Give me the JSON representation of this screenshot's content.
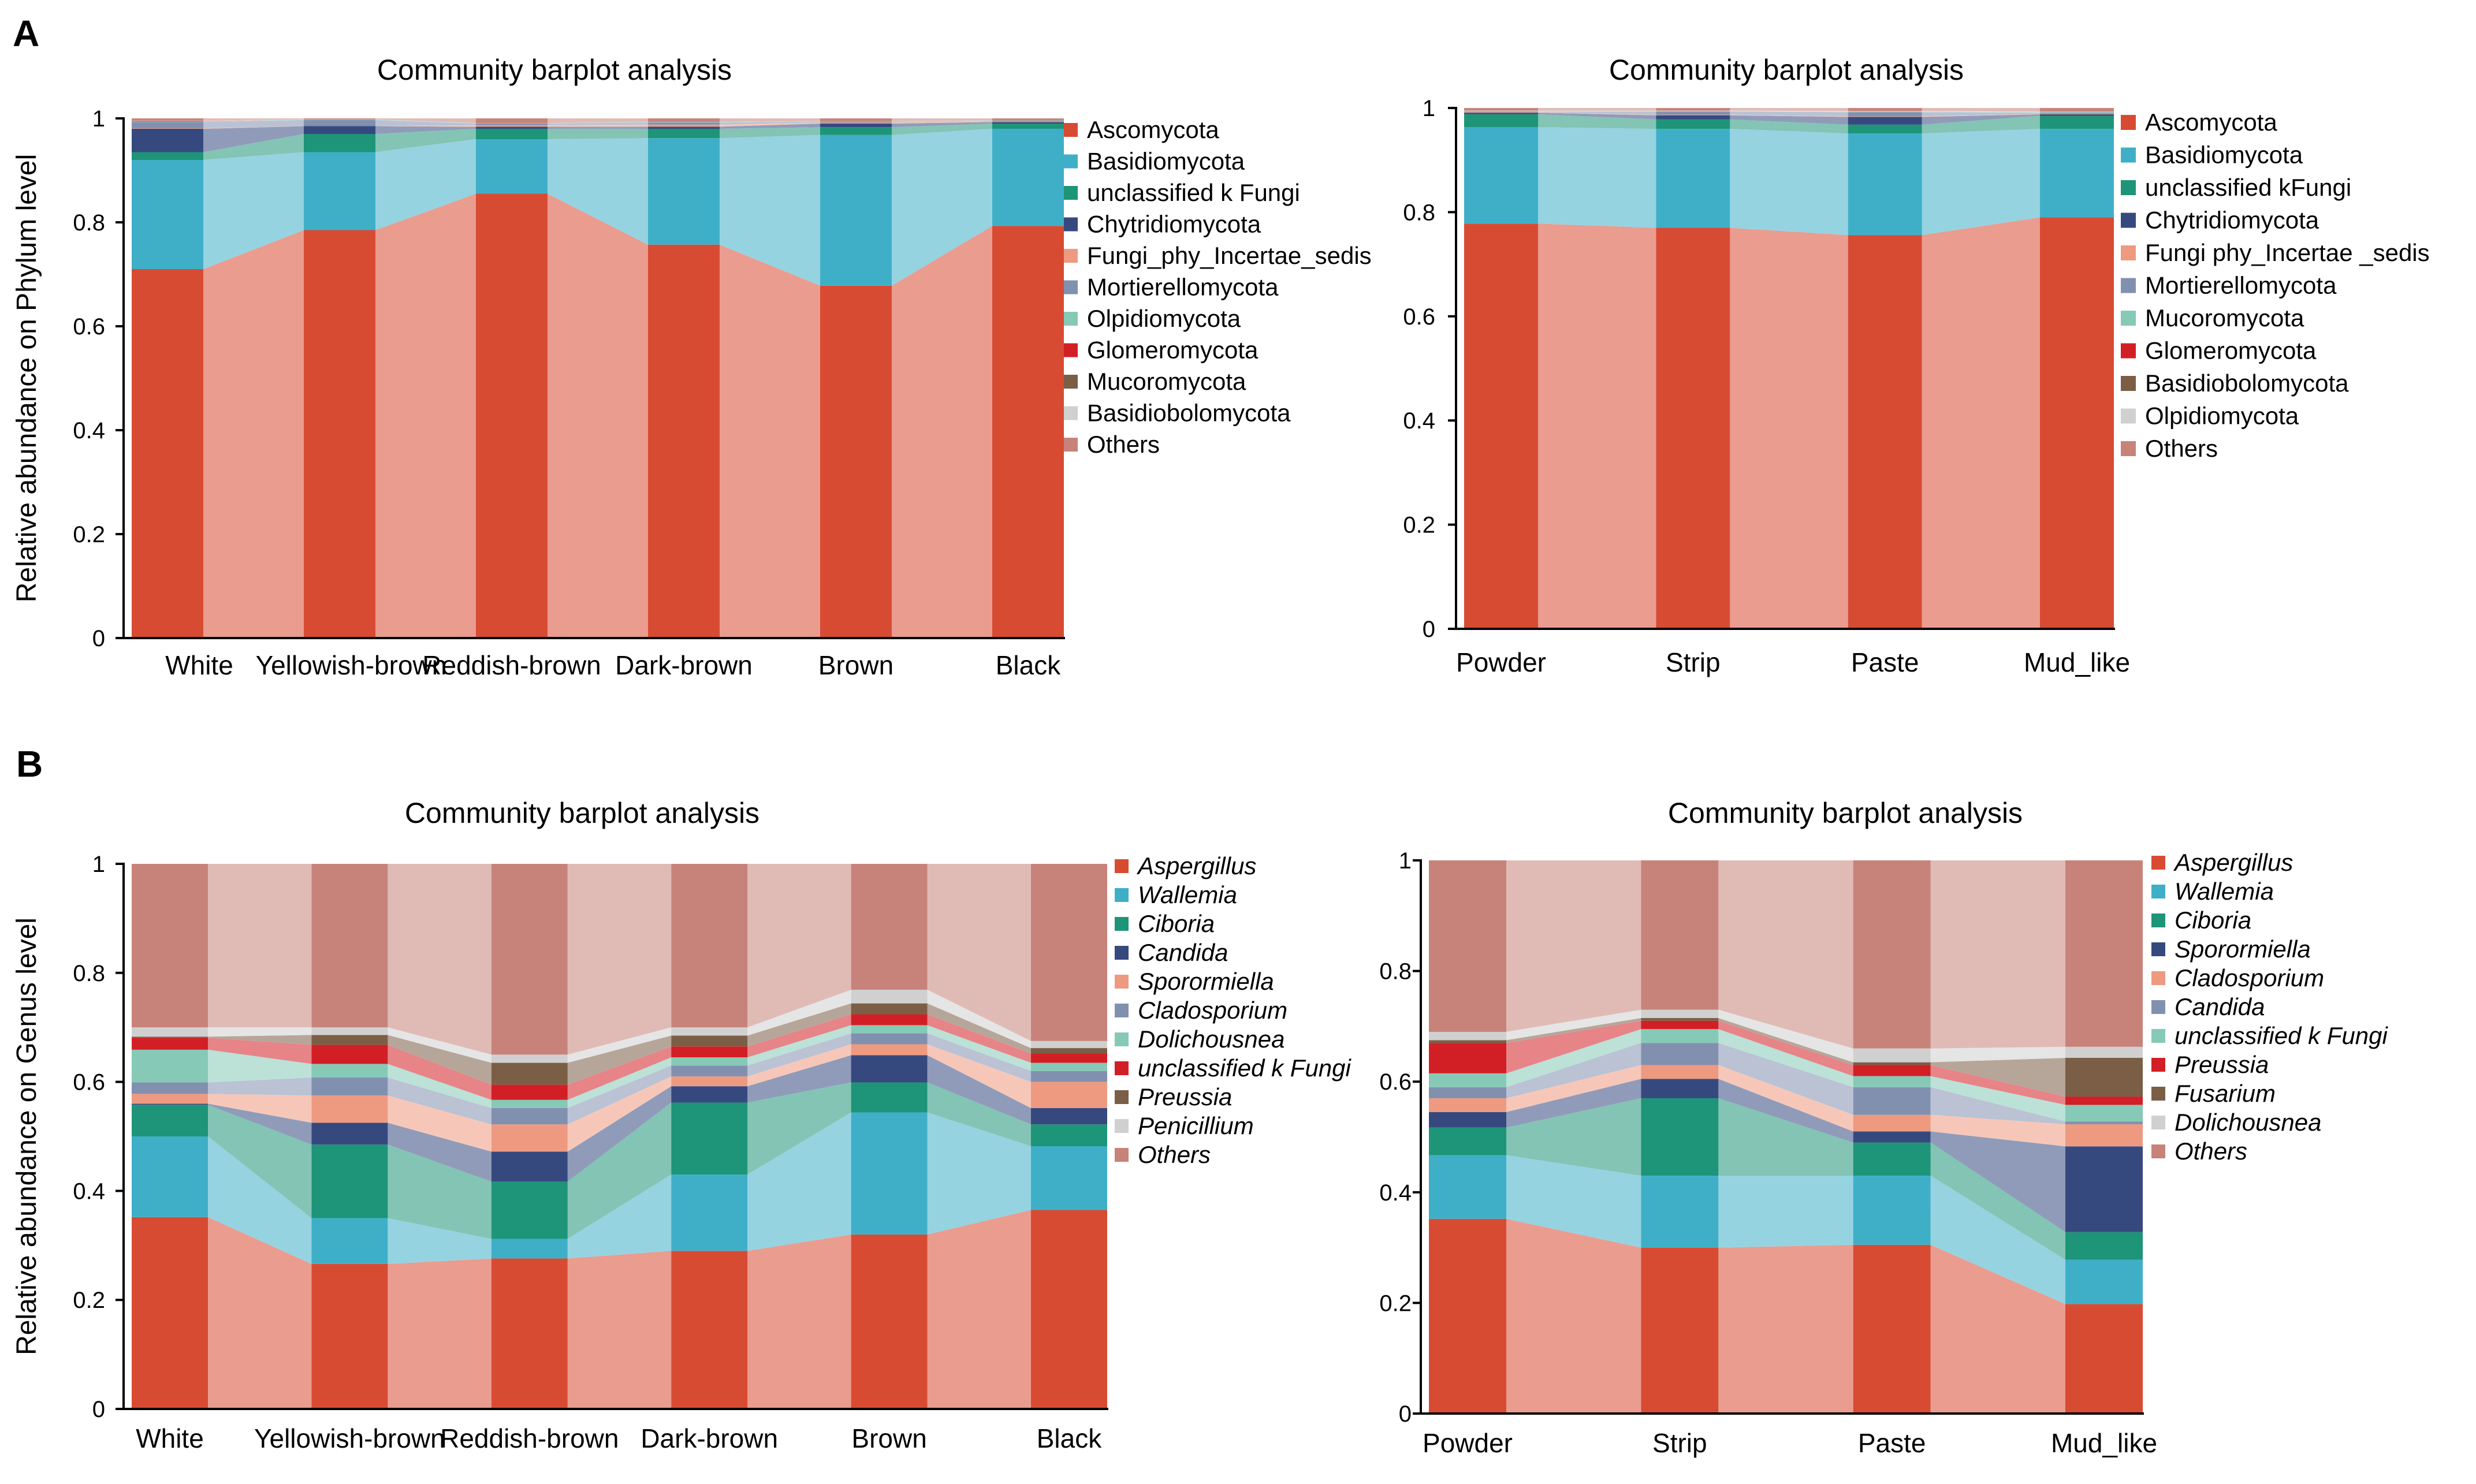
{
  "panels": {
    "a": "A",
    "b": "B"
  },
  "chart_data": [
    {
      "type": "bar",
      "stacked": true,
      "title": "Community barplot analysis",
      "xlabel": "",
      "ylabel": "Relative abundance on Phylum level",
      "ylim": [
        0,
        1
      ],
      "yticks": [
        "0",
        "0.2",
        "0.4",
        "0.6",
        "0.8",
        "1"
      ],
      "categories": [
        "White",
        "Yellowish-brown",
        "Reddish-brown",
        "Dark-brown",
        "Brown",
        "Black"
      ],
      "series": [
        {
          "name": "Ascomycota",
          "color": "#d84b33",
          "values": [
            0.71,
            0.785,
            0.855,
            0.757,
            0.678,
            0.793
          ]
        },
        {
          "name": "Basidiomycota",
          "color": "#3fafc8",
          "values": [
            0.21,
            0.15,
            0.105,
            0.205,
            0.29,
            0.187
          ]
        },
        {
          "name": "unclassified k Fungi",
          "color": "#1e9478",
          "values": [
            0.015,
            0.035,
            0.02,
            0.018,
            0.015,
            0.01
          ]
        },
        {
          "name": "Chytridiomycota",
          "color": "#36497f",
          "values": [
            0.045,
            0.015,
            0.004,
            0.004,
            0.007,
            0.003
          ]
        },
        {
          "name": "Fungi_phy_Incertae_sedis",
          "color": "#ee9a80",
          "values": [
            0.001,
            0.0,
            0.003,
            0.004,
            0.002,
            0.001
          ]
        },
        {
          "name": "Mortierellomycota",
          "color": "#8290b0",
          "values": [
            0.012,
            0.012,
            0.003,
            0.004,
            0.002,
            0.001
          ]
        },
        {
          "name": "Olpidiomycota",
          "color": "#86c9b7",
          "values": [
            0.001,
            0.001,
            0.001,
            0.001,
            0.001,
            0.001
          ]
        },
        {
          "name": "Glomeromycota",
          "color": "#d21f26",
          "values": [
            0.001,
            0.0,
            0.0,
            0.0,
            0.0,
            0.0
          ]
        },
        {
          "name": "Mucoromycota",
          "color": "#7b5e46",
          "values": [
            0.0,
            0.0,
            0.0,
            0.0,
            0.0,
            0.0
          ]
        },
        {
          "name": "Basidiobolomycota",
          "color": "#d0d0d0",
          "values": [
            0.001,
            0.0,
            0.0,
            0.0,
            0.0,
            0.0
          ]
        },
        {
          "name": "Others",
          "color": "#c7837a",
          "values": [
            0.004,
            0.002,
            0.009,
            0.007,
            0.005,
            0.004
          ]
        }
      ]
    },
    {
      "type": "bar",
      "stacked": true,
      "title": "Community barplot analysis",
      "xlabel": "",
      "ylabel": "",
      "ylim": [
        0,
        1
      ],
      "yticks": [
        "0",
        "0.2",
        "0.4",
        "0.6",
        "0.8",
        "1"
      ],
      "categories": [
        "Powder",
        "Strip",
        "Paste",
        "Mud_like"
      ],
      "series": [
        {
          "name": "Ascomycota",
          "color": "#d84b33",
          "values": [
            0.778,
            0.77,
            0.756,
            0.79
          ]
        },
        {
          "name": "Basidiomycota",
          "color": "#3fafc8",
          "values": [
            0.185,
            0.19,
            0.195,
            0.17
          ]
        },
        {
          "name": "unclassified kFungi",
          "color": "#1e9478",
          "values": [
            0.025,
            0.018,
            0.017,
            0.025
          ]
        },
        {
          "name": "Chytridiomycota",
          "color": "#36497f",
          "values": [
            0.003,
            0.008,
            0.015,
            0.003
          ]
        },
        {
          "name": "Fungi phy_Incertae _sedis",
          "color": "#ee9a80",
          "values": [
            0.001,
            0.001,
            0.001,
            0.001
          ]
        },
        {
          "name": "Mortierellomycota",
          "color": "#8290b0",
          "values": [
            0.001,
            0.006,
            0.008,
            0.002
          ]
        },
        {
          "name": "Mucoromycota",
          "color": "#86c9b7",
          "values": [
            0.001,
            0.001,
            0.001,
            0.001
          ]
        },
        {
          "name": "Glomeromycota",
          "color": "#d21f26",
          "values": [
            0.0,
            0.0,
            0.0,
            0.0
          ]
        },
        {
          "name": "Basidiobolomycota",
          "color": "#7b5e46",
          "values": [
            0.0,
            0.0,
            0.0,
            0.0
          ]
        },
        {
          "name": "Olpidiomycota",
          "color": "#d0d0d0",
          "values": [
            0.001,
            0.001,
            0.001,
            0.001
          ]
        },
        {
          "name": "Others",
          "color": "#c7837a",
          "values": [
            0.005,
            0.005,
            0.006,
            0.007
          ]
        }
      ]
    },
    {
      "type": "bar",
      "stacked": true,
      "title": "Community barplot analysis",
      "xlabel": "",
      "ylabel": "Relative abundance on Genus level",
      "ylim": [
        0,
        1
      ],
      "yticks": [
        "0",
        "0.2",
        "0.4",
        "0.6",
        "0.8",
        "1"
      ],
      "italic_legend": true,
      "categories": [
        "White",
        "Yellowish-brown",
        "Reddish-brown",
        "Dark-brown",
        "Brown",
        "Black"
      ],
      "series": [
        {
          "name": "Aspergillus",
          "color": "#d84b33",
          "values": [
            0.352,
            0.266,
            0.276,
            0.29,
            0.32,
            0.365
          ]
        },
        {
          "name": "Wallemia",
          "color": "#3fafc8",
          "values": [
            0.148,
            0.084,
            0.036,
            0.14,
            0.224,
            0.117
          ]
        },
        {
          "name": "Ciboria",
          "color": "#1e9478",
          "values": [
            0.058,
            0.135,
            0.105,
            0.132,
            0.055,
            0.04
          ]
        },
        {
          "name": "Candida",
          "color": "#36497f",
          "values": [
            0.002,
            0.04,
            0.055,
            0.03,
            0.05,
            0.03
          ]
        },
        {
          "name": "Sporormiella",
          "color": "#ee9a80",
          "values": [
            0.018,
            0.05,
            0.05,
            0.018,
            0.02,
            0.048
          ]
        },
        {
          "name": "Cladosporium",
          "color": "#8290b0",
          "values": [
            0.021,
            0.033,
            0.03,
            0.02,
            0.02,
            0.02
          ]
        },
        {
          "name": "Dolichousnea",
          "color": "#86c9b7",
          "values": [
            0.06,
            0.025,
            0.015,
            0.015,
            0.015,
            0.015
          ]
        },
        {
          "name": "unclassified k Fungi",
          "color": "#d21f26",
          "values": [
            0.022,
            0.035,
            0.028,
            0.02,
            0.02,
            0.017
          ]
        },
        {
          "name": "Preussia",
          "color": "#7b5e46",
          "values": [
            0.002,
            0.018,
            0.04,
            0.02,
            0.02,
            0.01
          ]
        },
        {
          "name": "Penicillium",
          "color": "#d0d0d0",
          "values": [
            0.017,
            0.014,
            0.015,
            0.015,
            0.025,
            0.013
          ]
        },
        {
          "name": "Others",
          "color": "#c7837a",
          "values": [
            0.3,
            0.3,
            0.35,
            0.3,
            0.231,
            0.325
          ]
        }
      ]
    },
    {
      "type": "bar",
      "stacked": true,
      "title": "Community barplot analysis",
      "xlabel": "",
      "ylabel": "",
      "ylim": [
        0,
        1
      ],
      "yticks": [
        "0",
        "0.2",
        "0.4",
        "0.6",
        "0.8",
        "1"
      ],
      "italic_legend": true,
      "categories": [
        "Powder",
        "Strip",
        "Paste",
        "Mud_like"
      ],
      "series": [
        {
          "name": "Aspergillus",
          "color": "#d84b33",
          "values": [
            0.352,
            0.3,
            0.305,
            0.198
          ]
        },
        {
          "name": "Wallemia",
          "color": "#3fafc8",
          "values": [
            0.115,
            0.13,
            0.125,
            0.08
          ]
        },
        {
          "name": "Ciboria",
          "color": "#1e9478",
          "values": [
            0.05,
            0.14,
            0.06,
            0.05
          ]
        },
        {
          "name": "Sporormiella",
          "color": "#36497f",
          "values": [
            0.028,
            0.035,
            0.02,
            0.155
          ]
        },
        {
          "name": "Cladosporium",
          "color": "#ee9a80",
          "values": [
            0.025,
            0.025,
            0.03,
            0.04
          ]
        },
        {
          "name": "Candida",
          "color": "#8290b0",
          "values": [
            0.02,
            0.04,
            0.05,
            0.005
          ]
        },
        {
          "name": "unclassified k Fungi",
          "color": "#86c9b7",
          "values": [
            0.025,
            0.025,
            0.02,
            0.03
          ]
        },
        {
          "name": "Preussia",
          "color": "#d21f26",
          "values": [
            0.055,
            0.015,
            0.02,
            0.015
          ]
        },
        {
          "name": "Fusarium",
          "color": "#7b5e46",
          "values": [
            0.005,
            0.005,
            0.005,
            0.07
          ]
        },
        {
          "name": "Dolichousnea",
          "color": "#d0d0d0",
          "values": [
            0.015,
            0.015,
            0.025,
            0.02
          ]
        },
        {
          "name": "Others",
          "color": "#c7837a",
          "values": [
            0.31,
            0.27,
            0.34,
            0.337
          ]
        }
      ]
    }
  ]
}
